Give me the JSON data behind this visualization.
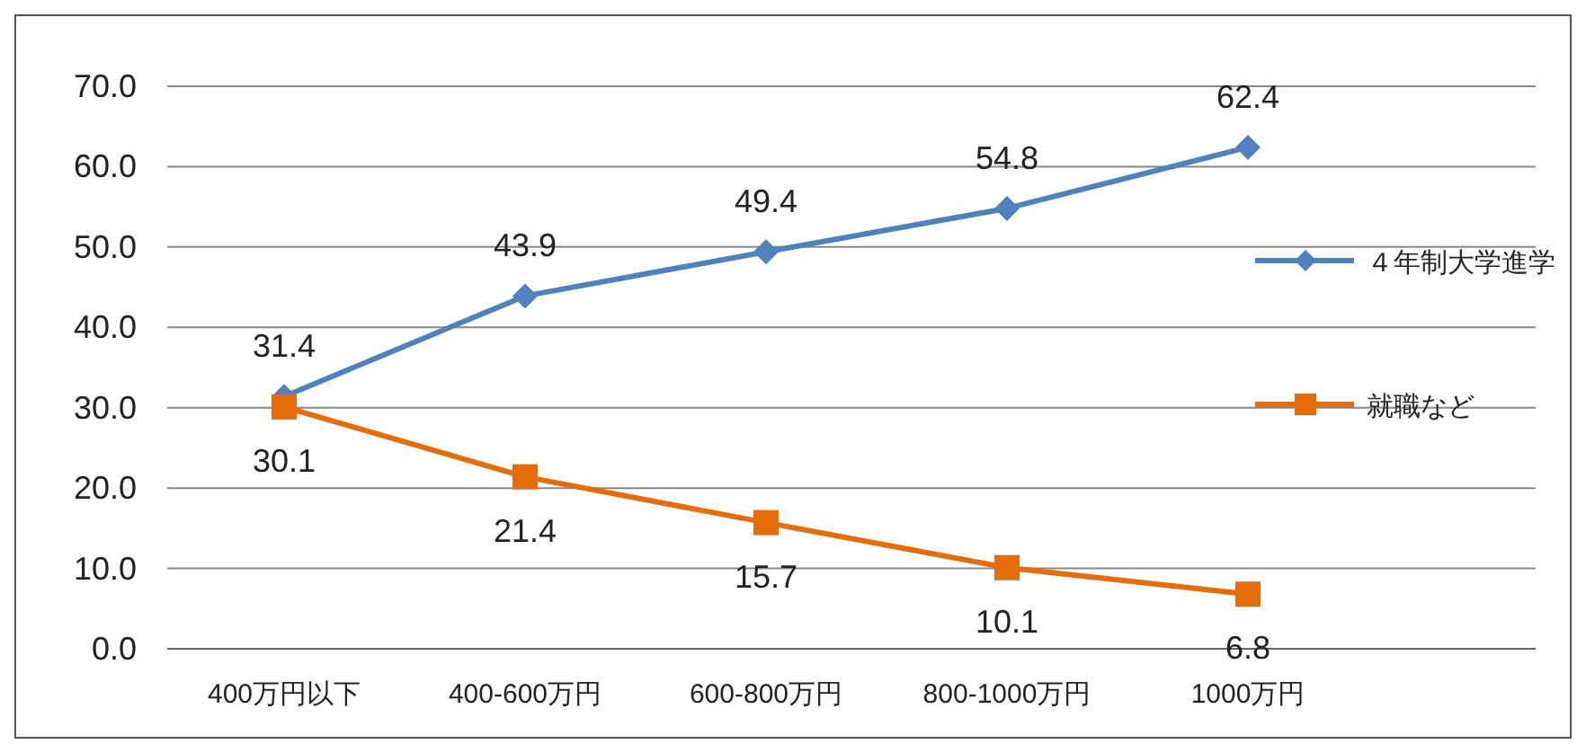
{
  "chart_data": {
    "type": "line",
    "categories": [
      "400万円以下",
      "400-600万円",
      "600-800万円",
      "800-1000万円",
      "1000万円"
    ],
    "series": [
      {
        "name": "４年制大学進学",
        "color": "#4f81bd",
        "marker": "diamond",
        "values": [
          31.4,
          43.9,
          49.4,
          54.8,
          62.4
        ]
      },
      {
        "name": "就職など",
        "color": "#e46c0a",
        "marker": "square",
        "values": [
          30.1,
          21.4,
          15.7,
          10.1,
          6.8
        ]
      }
    ],
    "ylim": [
      0,
      70
    ],
    "yticks": [
      {
        "value": 0,
        "label": "0.0"
      },
      {
        "value": 10,
        "label": "10.0"
      },
      {
        "value": 20,
        "label": "20.0"
      },
      {
        "value": 30,
        "label": "30.0"
      },
      {
        "value": 40,
        "label": "40.0"
      },
      {
        "value": 50,
        "label": "50.0"
      },
      {
        "value": 60,
        "label": "60.0"
      },
      {
        "value": 70,
        "label": "70.0"
      }
    ],
    "grid": "y",
    "legend": "right",
    "data_labels": true
  }
}
